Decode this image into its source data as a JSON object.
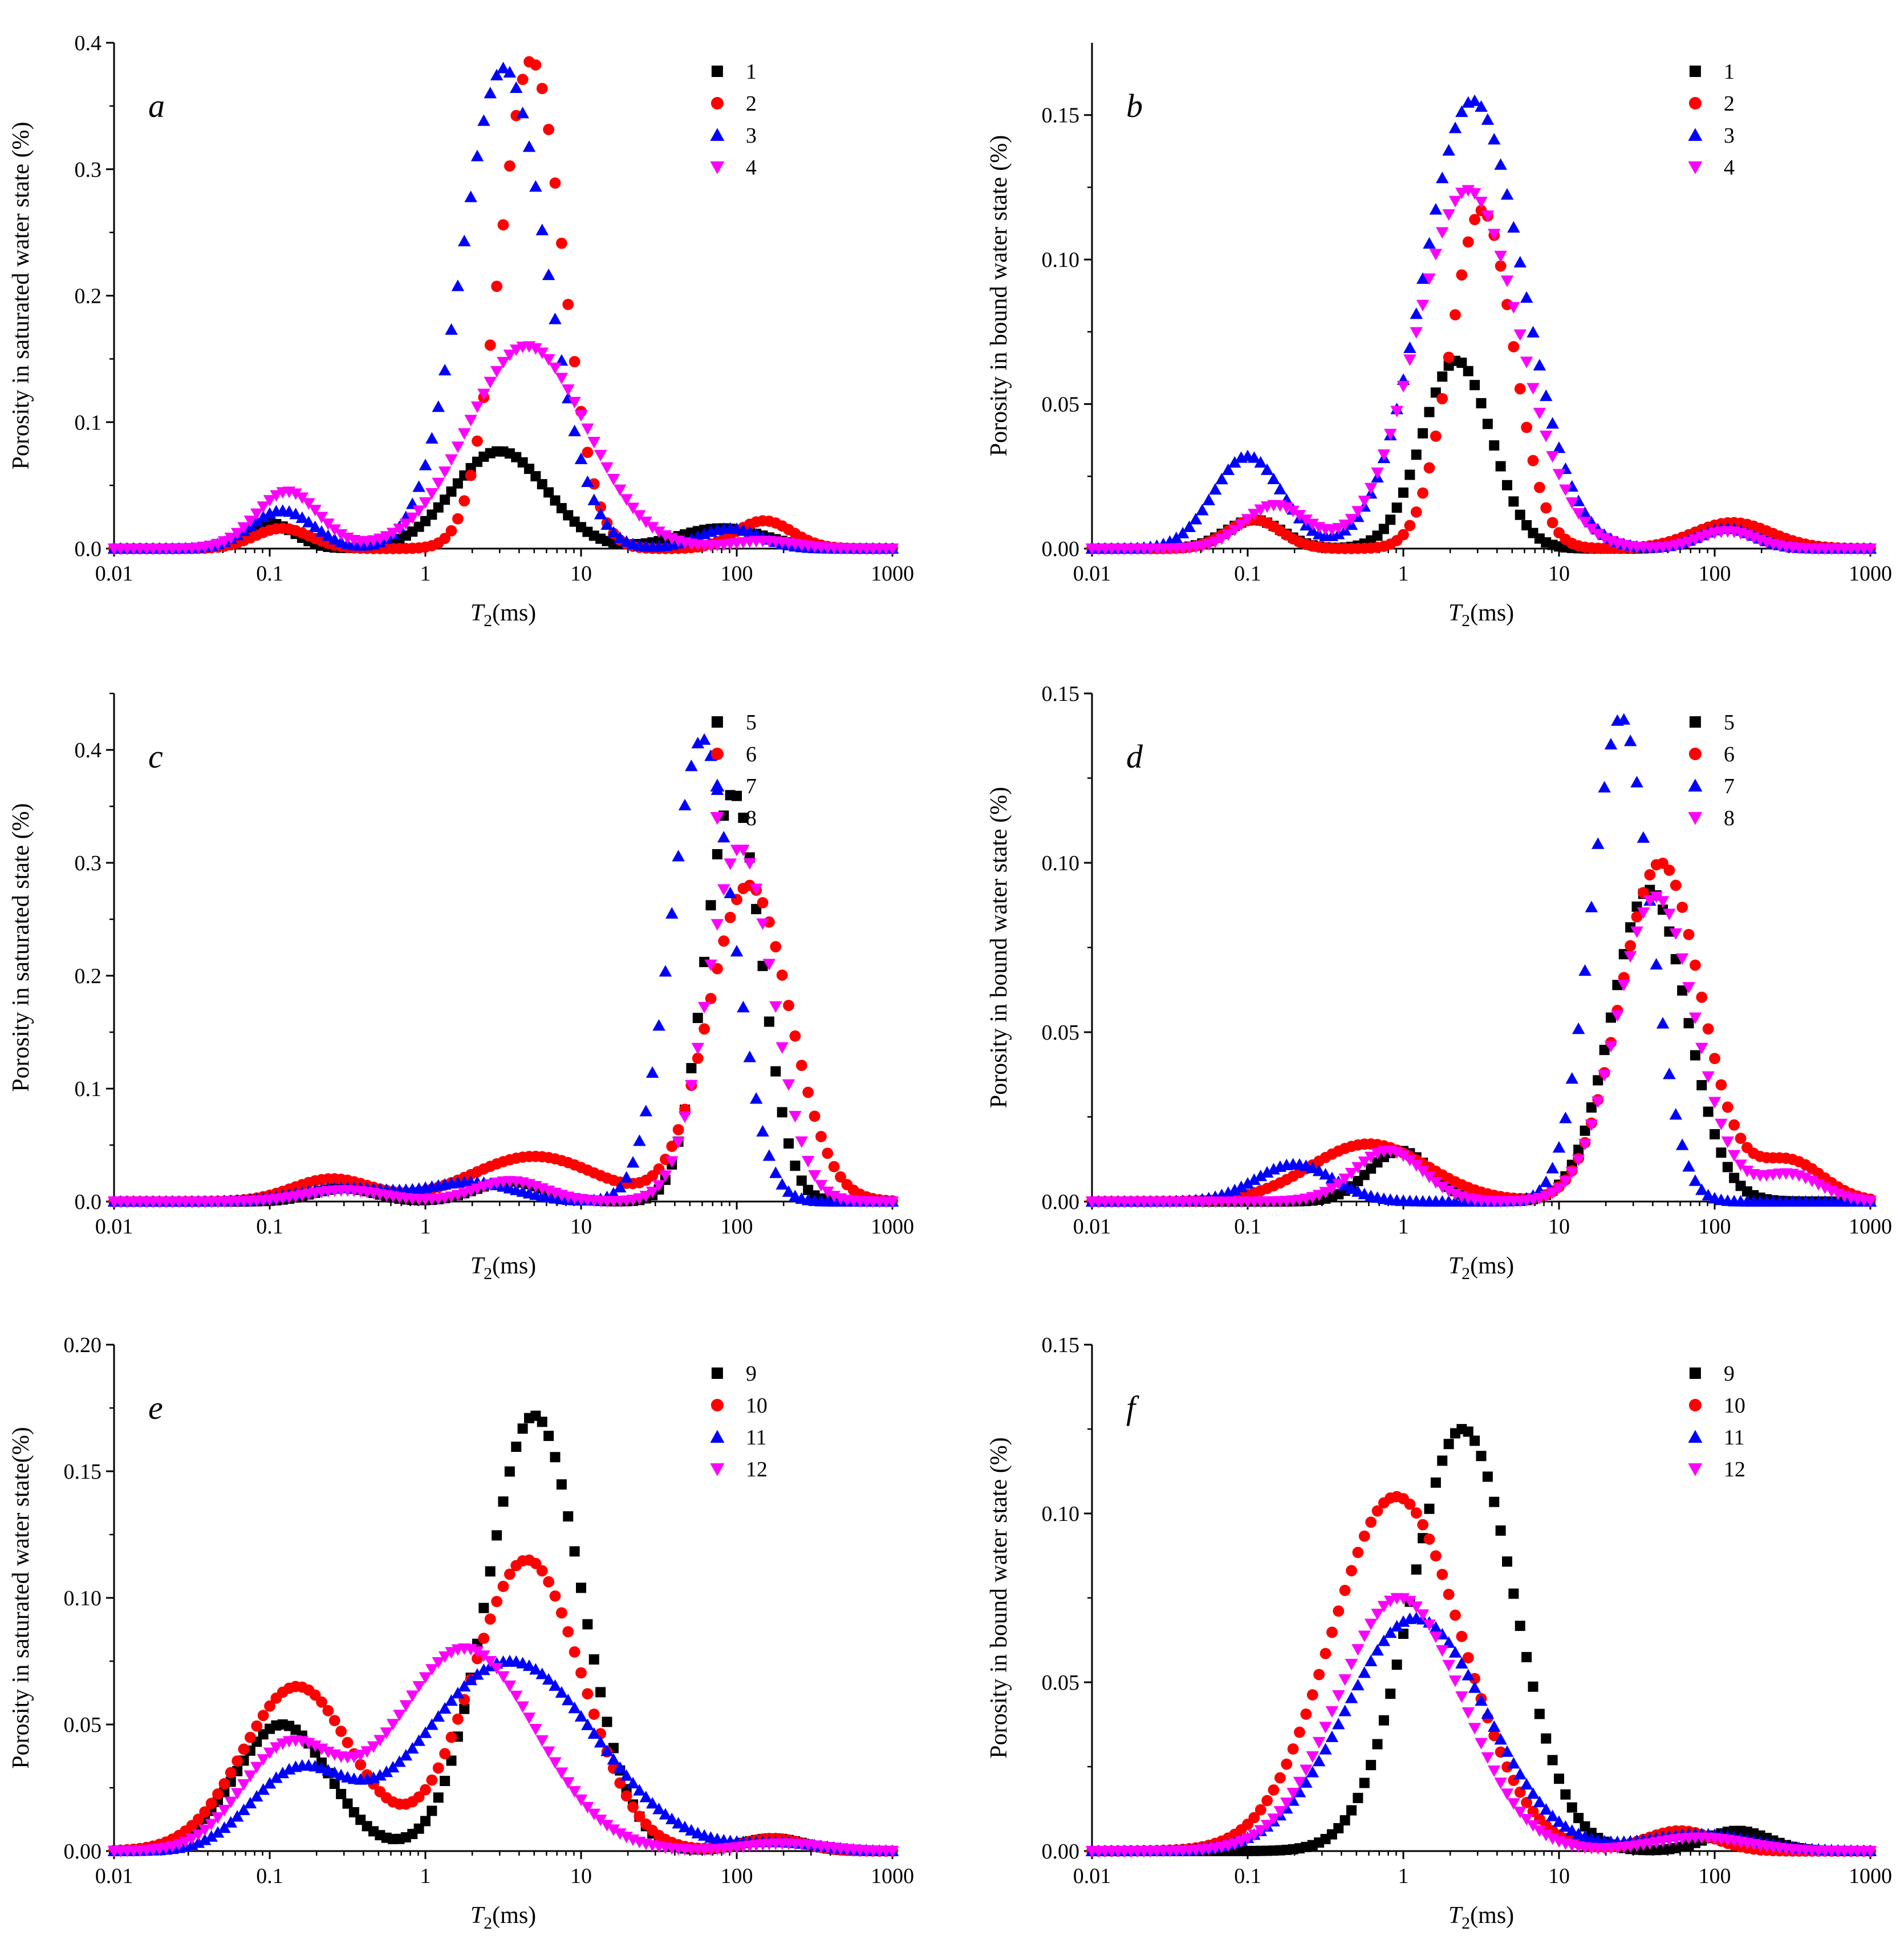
{
  "figure": {
    "colors": {
      "s1": "#000000",
      "s2": "#ff0000",
      "s3": "#0000ff",
      "s4": "#ff00ff"
    },
    "marker_shapes": [
      "square",
      "circle",
      "triangle-up",
      "triangle-down"
    ]
  },
  "chart_data": [
    {
      "type": "scatter",
      "panel_label": "a",
      "xlabel_main": "T",
      "xlabel_sub": "2",
      "xlabel_unit": "(ms)",
      "ylabel": "Porosity in saturated water state (%)",
      "xscale": "log",
      "xlim": [
        0.01,
        1000
      ],
      "ylim": [
        0,
        0.4
      ],
      "xticks": [
        "0.01",
        "0.1",
        "1",
        "10",
        "100",
        "1000"
      ],
      "yticks": [
        "0.0",
        "0.1",
        "0.2",
        "0.3",
        "0.4"
      ],
      "ytick_values": [
        0,
        0.1,
        0.2,
        0.3,
        0.4
      ],
      "legend_position": "top-right",
      "series": [
        {
          "name": "1",
          "components": [
            {
              "amp": 0.02,
              "mu": 0.1,
              "sigma": 0.16
            },
            {
              "amp": 0.077,
              "mu": 3.0,
              "sigma": 0.3
            },
            {
              "amp": 0.016,
              "mu": 80,
              "sigma": 0.28
            }
          ],
          "xmin": 0.01,
          "xmax": 1000
        },
        {
          "name": "2",
          "components": [
            {
              "amp": 0.016,
              "mu": 0.12,
              "sigma": 0.18
            },
            {
              "amp": 0.386,
              "mu": 4.8,
              "sigma": 0.2
            },
            {
              "amp": 0.022,
              "mu": 150,
              "sigma": 0.18
            }
          ],
          "xmin": 0.01,
          "xmax": 1000
        },
        {
          "name": "3",
          "components": [
            {
              "amp": 0.03,
              "mu": 0.12,
              "sigma": 0.2
            },
            {
              "amp": 0.38,
              "mu": 3.2,
              "sigma": 0.27
            },
            {
              "amp": 0.016,
              "mu": 90,
              "sigma": 0.2
            }
          ],
          "xmin": 0.01,
          "xmax": 1000
        },
        {
          "name": "4",
          "components": [
            {
              "amp": 0.045,
              "mu": 0.13,
              "sigma": 0.2
            },
            {
              "amp": 0.16,
              "mu": 4.5,
              "sigma": 0.38
            },
            {
              "amp": 0.006,
              "mu": 150,
              "sigma": 0.2
            }
          ],
          "xmin": 0.01,
          "xmax": 1000
        }
      ]
    },
    {
      "type": "scatter",
      "panel_label": "b",
      "xlabel_main": "T",
      "xlabel_sub": "2",
      "xlabel_unit": "(ms)",
      "ylabel": "Porosity in bound water state (%)",
      "xscale": "log",
      "xlim": [
        0.01,
        1000
      ],
      "ylim": [
        0,
        0.175
      ],
      "xticks": [
        "0.01",
        "0.1",
        "1",
        "10",
        "100",
        "1000"
      ],
      "yticks": [
        "0.00",
        "0.05",
        "0.10",
        "0.15"
      ],
      "ytick_values": [
        0,
        0.05,
        0.1,
        0.15
      ],
      "legend_position": "top-right",
      "series": [
        {
          "name": "1",
          "components": [
            {
              "amp": 0.01,
              "mu": 0.11,
              "sigma": 0.18
            },
            {
              "amp": 0.065,
              "mu": 2.2,
              "sigma": 0.22
            },
            {
              "amp": 0.008,
              "mu": 120,
              "sigma": 0.18
            }
          ],
          "xmin": 0.01,
          "xmax": 1000
        },
        {
          "name": "2",
          "components": [
            {
              "amp": 0.01,
              "mu": 0.11,
              "sigma": 0.17
            },
            {
              "amp": 0.117,
              "mu": 3.2,
              "sigma": 0.2
            },
            {
              "amp": 0.009,
              "mu": 130,
              "sigma": 0.25
            }
          ],
          "xmin": 0.01,
          "xmax": 1000
        },
        {
          "name": "3",
          "components": [
            {
              "amp": 0.032,
              "mu": 0.1,
              "sigma": 0.22
            },
            {
              "amp": 0.155,
              "mu": 2.8,
              "sigma": 0.32
            },
            {
              "amp": 0.007,
              "mu": 120,
              "sigma": 0.18
            }
          ],
          "xmin": 0.01,
          "xmax": 1000
        },
        {
          "name": "4",
          "components": [
            {
              "amp": 0.015,
              "mu": 0.15,
              "sigma": 0.2
            },
            {
              "amp": 0.124,
              "mu": 2.6,
              "sigma": 0.33
            },
            {
              "amp": 0.006,
              "mu": 120,
              "sigma": 0.18
            }
          ],
          "xmin": 0.01,
          "xmax": 1000
        }
      ]
    },
    {
      "type": "scatter",
      "panel_label": "c",
      "xlabel_main": "T",
      "xlabel_sub": "2",
      "xlabel_unit": "(ms)",
      "ylabel": "Porosity in saturated state (%)",
      "xscale": "log",
      "xlim": [
        0.01,
        1000
      ],
      "ylim": [
        0,
        0.45
      ],
      "xticks": [
        "0.01",
        "0.1",
        "1",
        "10",
        "100",
        "1000"
      ],
      "yticks": [
        "0.0",
        "0.1",
        "0.2",
        "0.3",
        "0.4"
      ],
      "ytick_values": [
        0,
        0.1,
        0.2,
        0.3,
        0.4
      ],
      "legend_position": "top-right",
      "series": [
        {
          "name": "5",
          "components": [
            {
              "amp": 0.012,
              "mu": 0.3,
              "sigma": 0.2
            },
            {
              "amp": 0.018,
              "mu": 3.5,
              "sigma": 0.22
            },
            {
              "amp": 0.362,
              "mu": 95,
              "sigma": 0.18
            }
          ],
          "xmin": 0.01,
          "xmax": 1000
        },
        {
          "name": "6",
          "components": [
            {
              "amp": 0.02,
              "mu": 0.25,
              "sigma": 0.25
            },
            {
              "amp": 0.04,
              "mu": 5,
              "sigma": 0.4
            },
            {
              "amp": 0.28,
              "mu": 120,
              "sigma": 0.26
            }
          ],
          "xmin": 0.01,
          "xmax": 1000
        },
        {
          "name": "7",
          "components": [
            {
              "amp": 0.012,
              "mu": 0.3,
              "sigma": 0.3
            },
            {
              "amp": 0.017,
              "mu": 2,
              "sigma": 0.28
            },
            {
              "amp": 0.41,
              "mu": 60,
              "sigma": 0.2
            }
          ],
          "xmin": 0.01,
          "xmax": 1000
        },
        {
          "name": "8",
          "components": [
            {
              "amp": 0.01,
              "mu": 0.3,
              "sigma": 0.25
            },
            {
              "amp": 0.018,
              "mu": 3.5,
              "sigma": 0.22
            },
            {
              "amp": 0.313,
              "mu": 105,
              "sigma": 0.21
            }
          ],
          "xmin": 0.01,
          "xmax": 1000
        }
      ]
    },
    {
      "type": "scatter",
      "panel_label": "d",
      "xlabel_main": "T",
      "xlabel_sub": "2",
      "xlabel_unit": "(ms)",
      "ylabel": "Porosity in bound water state (%)",
      "xscale": "log",
      "xlim": [
        0.01,
        1000
      ],
      "ylim": [
        0,
        0.15
      ],
      "xticks": [
        "0.01",
        "0.1",
        "1",
        "10",
        "100",
        "1000"
      ],
      "yticks": [
        "0.00",
        "0.05",
        "0.10",
        "0.15"
      ],
      "ytick_values": [
        0,
        0.05,
        0.1,
        0.15
      ],
      "legend_position": "top-right",
      "series": [
        {
          "name": "5",
          "components": [
            {
              "amp": 0.015,
              "mu": 0.95,
              "sigma": 0.2
            },
            {
              "amp": 0.092,
              "mu": 38,
              "sigma": 0.24
            }
          ],
          "xmin": 0.01,
          "xmax": 1000
        },
        {
          "name": "6",
          "components": [
            {
              "amp": 0.017,
              "mu": 0.6,
              "sigma": 0.38
            },
            {
              "amp": 0.1,
              "mu": 45,
              "sigma": 0.26
            },
            {
              "amp": 0.012,
              "mu": 300,
              "sigma": 0.22
            }
          ],
          "xmin": 0.01,
          "xmax": 1000
        },
        {
          "name": "7",
          "components": [
            {
              "amp": 0.011,
              "mu": 0.2,
              "sigma": 0.25
            },
            {
              "amp": 0.143,
              "mu": 25,
              "sigma": 0.19
            }
          ],
          "xmin": 0.01,
          "xmax": 1000
        },
        {
          "name": "8",
          "components": [
            {
              "amp": 0.015,
              "mu": 0.8,
              "sigma": 0.22
            },
            {
              "amp": 0.09,
              "mu": 42,
              "sigma": 0.25
            },
            {
              "amp": 0.008,
              "mu": 300,
              "sigma": 0.2
            }
          ],
          "xmin": 0.01,
          "xmax": 1000
        }
      ]
    },
    {
      "type": "scatter",
      "panel_label": "e",
      "xlabel_main": "T",
      "xlabel_sub": "2",
      "xlabel_unit": "(ms)",
      "ylabel": "Porosity in saturated water state(%)",
      "xscale": "log",
      "xlim": [
        0.01,
        1000
      ],
      "ylim": [
        0,
        0.2
      ],
      "xticks": [
        "0.01",
        "0.1",
        "1",
        "10",
        "100",
        "1000"
      ],
      "yticks": [
        "0.00",
        "0.05",
        "0.10",
        "0.15",
        "0.20"
      ],
      "ytick_values": [
        0,
        0.05,
        0.1,
        0.15,
        0.2
      ],
      "legend_position": "top-right",
      "series": [
        {
          "name": "9",
          "components": [
            {
              "amp": 0.05,
              "mu": 0.12,
              "sigma": 0.3
            },
            {
              "amp": 0.172,
              "mu": 5,
              "sigma": 0.3
            },
            {
              "amp": 0.005,
              "mu": 170,
              "sigma": 0.2
            }
          ],
          "xmin": 0.01,
          "xmax": 1000
        },
        {
          "name": "10",
          "components": [
            {
              "amp": 0.065,
              "mu": 0.15,
              "sigma": 0.35
            },
            {
              "amp": 0.115,
              "mu": 4.5,
              "sigma": 0.35
            },
            {
              "amp": 0.005,
              "mu": 170,
              "sigma": 0.2
            }
          ],
          "xmin": 0.01,
          "xmax": 1000
        },
        {
          "name": "11",
          "components": [
            {
              "amp": 0.03,
              "mu": 0.15,
              "sigma": 0.3
            },
            {
              "amp": 0.075,
              "mu": 3.5,
              "sigma": 0.55
            },
            {
              "amp": 0.003,
              "mu": 200,
              "sigma": 0.25
            }
          ],
          "xmin": 0.01,
          "xmax": 1000
        },
        {
          "name": "12",
          "components": [
            {
              "amp": 0.04,
              "mu": 0.13,
              "sigma": 0.3
            },
            {
              "amp": 0.08,
              "mu": 1.8,
              "sigma": 0.45
            },
            {
              "amp": 0.003,
              "mu": 200,
              "sigma": 0.25
            }
          ],
          "xmin": 0.01,
          "xmax": 1000
        }
      ]
    },
    {
      "type": "scatter",
      "panel_label": "f",
      "xlabel_main": "T",
      "xlabel_sub": "2",
      "xlabel_unit": "(ms)",
      "ylabel": "Porosity in bound water state (%)",
      "xscale": "log",
      "xlim": [
        0.01,
        1000
      ],
      "ylim": [
        0,
        0.15
      ],
      "xticks": [
        "0.01",
        "0.1",
        "1",
        "10",
        "100",
        "1000"
      ],
      "yticks": [
        "0.00",
        "0.05",
        "0.10",
        "0.15"
      ],
      "ytick_values": [
        0,
        0.05,
        0.1,
        0.15
      ],
      "legend_position": "top-right",
      "series": [
        {
          "name": "9",
          "components": [
            {
              "amp": 0.125,
              "mu": 2.4,
              "sigma": 0.33
            },
            {
              "amp": 0.006,
              "mu": 140,
              "sigma": 0.2
            }
          ],
          "xmin": 0.01,
          "xmax": 1000
        },
        {
          "name": "10",
          "components": [
            {
              "amp": 0.105,
              "mu": 0.9,
              "sigma": 0.42
            },
            {
              "amp": 0.006,
              "mu": 60,
              "sigma": 0.22
            }
          ],
          "xmin": 0.01,
          "xmax": 1000
        },
        {
          "name": "11",
          "components": [
            {
              "amp": 0.069,
              "mu": 1.2,
              "sigma": 0.45
            },
            {
              "amp": 0.005,
              "mu": 80,
              "sigma": 0.35
            }
          ],
          "xmin": 0.01,
          "xmax": 1000
        },
        {
          "name": "12",
          "components": [
            {
              "amp": 0.075,
              "mu": 0.95,
              "sigma": 0.4
            },
            {
              "amp": 0.004,
              "mu": 80,
              "sigma": 0.3
            }
          ],
          "xmin": 0.01,
          "xmax": 1000
        }
      ]
    }
  ]
}
